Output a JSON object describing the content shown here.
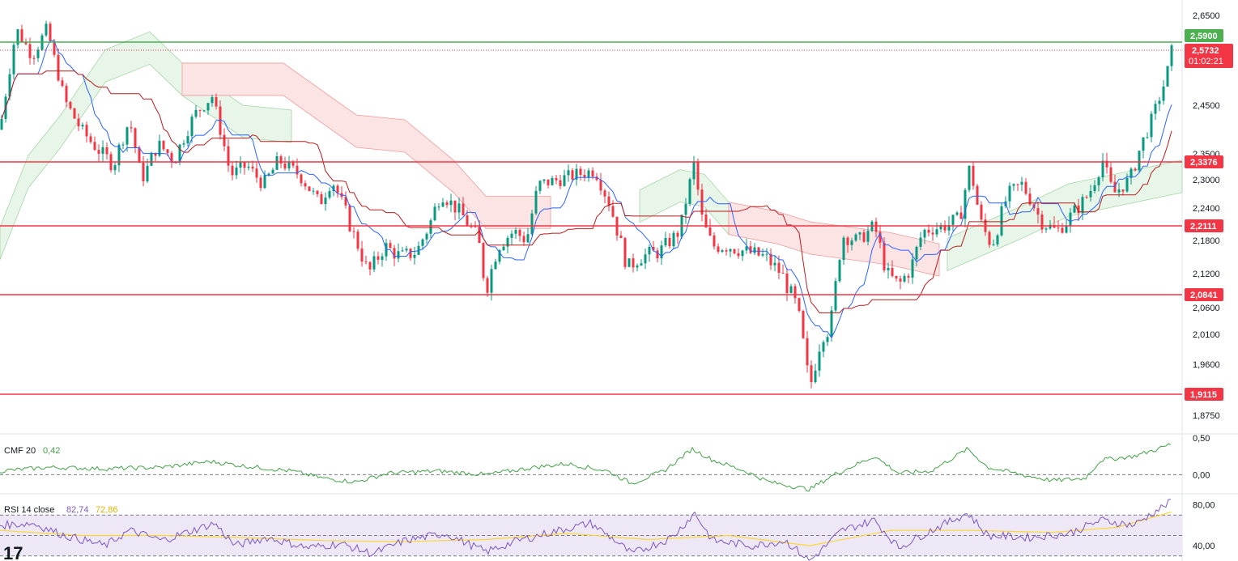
{
  "main_panel": {
    "y_ticks": [
      "2,6500",
      "2,4500",
      "2,3500",
      "2,3000",
      "2,2400",
      "2,1800",
      "2,1200",
      "2,0600",
      "2,0100",
      "1,9600",
      "1,8750"
    ],
    "price_badge": {
      "price": "2,5732",
      "countdown": "01:02:21"
    },
    "resistance_badge": "2,5900",
    "level_badges": [
      "2,3376",
      "2,2111",
      "2,0841",
      "1,9115"
    ]
  },
  "cmf_panel": {
    "name": "CMF 20",
    "value": "0,42",
    "y_ticks": [
      "0,50",
      "0,00"
    ]
  },
  "rsi_panel": {
    "name": "RSI 14 close",
    "value": "82,74",
    "ma_value": "72,86",
    "y_ticks": [
      "80,00",
      "40,00"
    ]
  },
  "watermark": "17",
  "colors": {
    "up": "#089981",
    "down": "#f23645",
    "level_line": "#f23645",
    "resistance_line": "#4caf50",
    "tenkan": "#2962ff",
    "kijun": "#b71c1c",
    "cloud_bull": "#e8f5e9",
    "cloud_bear": "#fde4e4",
    "cmf_line": "#43a047",
    "rsi_line": "#7e57c2",
    "rsi_ma": "#fdd835",
    "rsi_band": "#ede7f6"
  },
  "chart_data": [
    {
      "type": "candlestick",
      "price_scale": {
        "min": 1.86,
        "max": 2.66
      },
      "horizontal_levels": [
        {
          "value": 2.59,
          "role": "resistance",
          "color": "green"
        },
        {
          "value": 2.3376,
          "role": "level",
          "color": "red"
        },
        {
          "value": 2.2111,
          "role": "level",
          "color": "red"
        },
        {
          "value": 2.0841,
          "role": "level",
          "color": "red"
        },
        {
          "value": 1.9115,
          "role": "level",
          "color": "red"
        }
      ],
      "last_price": 2.5732,
      "close_path": [
        [
          0,
          2.4
        ],
        [
          20,
          2.62
        ],
        [
          40,
          2.56
        ],
        [
          58,
          2.62
        ],
        [
          80,
          2.46
        ],
        [
          100,
          2.4
        ],
        [
          120,
          2.36
        ],
        [
          140,
          2.33
        ],
        [
          160,
          2.42
        ],
        [
          175,
          2.3
        ],
        [
          195,
          2.37
        ],
        [
          215,
          2.34
        ],
        [
          240,
          2.43
        ],
        [
          262,
          2.47
        ],
        [
          285,
          2.31
        ],
        [
          305,
          2.33
        ],
        [
          325,
          2.29
        ],
        [
          345,
          2.34
        ],
        [
          370,
          2.31
        ],
        [
          395,
          2.25
        ],
        [
          410,
          2.3
        ],
        [
          435,
          2.2
        ],
        [
          455,
          2.12
        ],
        [
          475,
          2.17
        ],
        [
          495,
          2.15
        ],
        [
          515,
          2.16
        ],
        [
          530,
          2.21
        ],
        [
          545,
          2.27
        ],
        [
          570,
          2.23
        ],
        [
          590,
          2.19
        ],
        [
          600,
          2.09
        ],
        [
          615,
          2.17
        ],
        [
          635,
          2.2
        ],
        [
          650,
          2.18
        ],
        [
          665,
          2.29
        ],
        [
          690,
          2.3
        ],
        [
          710,
          2.31
        ],
        [
          735,
          2.32
        ],
        [
          755,
          2.24
        ],
        [
          775,
          2.13
        ],
        [
          790,
          2.15
        ],
        [
          815,
          2.16
        ],
        [
          840,
          2.2
        ],
        [
          858,
          2.34
        ],
        [
          865,
          2.23
        ],
        [
          880,
          2.17
        ],
        [
          900,
          2.17
        ],
        [
          920,
          2.16
        ],
        [
          945,
          2.15
        ],
        [
          965,
          2.12
        ],
        [
          985,
          2.06
        ],
        [
          1000,
          1.92
        ],
        [
          1015,
          2.01
        ],
        [
          1025,
          2.02
        ],
        [
          1040,
          2.19
        ],
        [
          1060,
          2.18
        ],
        [
          1080,
          2.21
        ],
        [
          1095,
          2.12
        ],
        [
          1110,
          2.1
        ],
        [
          1125,
          2.13
        ],
        [
          1140,
          2.2
        ],
        [
          1165,
          2.21
        ],
        [
          1185,
          2.22
        ],
        [
          1198,
          2.33
        ],
        [
          1210,
          2.22
        ],
        [
          1225,
          2.17
        ],
        [
          1245,
          2.27
        ],
        [
          1262,
          2.29
        ],
        [
          1285,
          2.22
        ],
        [
          1305,
          2.2
        ],
        [
          1325,
          2.23
        ],
        [
          1345,
          2.27
        ],
        [
          1362,
          2.34
        ],
        [
          1375,
          2.27
        ],
        [
          1395,
          2.3
        ],
        [
          1410,
          2.37
        ],
        [
          1425,
          2.43
        ],
        [
          1440,
          2.51
        ],
        [
          1447,
          2.57
        ]
      ],
      "cloud_bull_segments": [
        [
          [
            0,
            2.16
          ],
          [
            35,
            2.3
          ],
          [
            75,
            2.38
          ],
          [
            130,
            2.52
          ],
          [
            185,
            2.56
          ],
          [
            225,
            2.49
          ],
          [
            300,
            2.4
          ],
          [
            360,
            2.39
          ]
        ],
        [
          [
            790,
            2.23
          ],
          [
            840,
            2.27
          ],
          [
            870,
            2.26
          ],
          [
            900,
            2.21
          ]
        ],
        [
          [
            1170,
            2.14
          ],
          [
            1260,
            2.2
          ],
          [
            1320,
            2.24
          ],
          [
            1460,
            2.29
          ]
        ]
      ],
      "cloud_bear_segments": [
        [
          [
            225,
            2.49
          ],
          [
            350,
            2.49
          ],
          [
            440,
            2.38
          ],
          [
            500,
            2.37
          ],
          [
            560,
            2.29
          ],
          [
            600,
            2.22
          ],
          [
            680,
            2.22
          ]
        ],
        [
          [
            900,
            2.21
          ],
          [
            960,
            2.19
          ],
          [
            1000,
            2.17
          ],
          [
            1100,
            2.15
          ],
          [
            1160,
            2.13
          ]
        ]
      ]
    },
    {
      "type": "line",
      "indicator": "CMF 20",
      "last_value": 0.42,
      "y_range": [
        -0.25,
        0.5
      ],
      "zero_line": 0.0,
      "series_path": [
        [
          0,
          0.05
        ],
        [
          60,
          0.1
        ],
        [
          130,
          0.08
        ],
        [
          200,
          0.1
        ],
        [
          260,
          0.18
        ],
        [
          300,
          0.12
        ],
        [
          360,
          0.05
        ],
        [
          400,
          -0.05
        ],
        [
          440,
          -0.1
        ],
        [
          480,
          0.02
        ],
        [
          540,
          0.05
        ],
        [
          600,
          0.0
        ],
        [
          660,
          0.1
        ],
        [
          700,
          0.15
        ],
        [
          750,
          0.05
        ],
        [
          780,
          -0.12
        ],
        [
          820,
          0.05
        ],
        [
          855,
          0.35
        ],
        [
          880,
          0.2
        ],
        [
          920,
          0.05
        ],
        [
          950,
          -0.1
        ],
        [
          1000,
          -0.2
        ],
        [
          1030,
          0.0
        ],
        [
          1080,
          0.25
        ],
        [
          1110,
          0.02
        ],
        [
          1150,
          0.05
        ],
        [
          1195,
          0.35
        ],
        [
          1220,
          0.1
        ],
        [
          1270,
          -0.02
        ],
        [
          1300,
          -0.08
        ],
        [
          1340,
          -0.05
        ],
        [
          1360,
          0.2
        ],
        [
          1400,
          0.25
        ],
        [
          1430,
          0.35
        ],
        [
          1447,
          0.42
        ]
      ]
    },
    {
      "type": "line",
      "indicator": "RSI 14 close",
      "last_value": 82.74,
      "ma_last_value": 72.86,
      "y_range": [
        25,
        90
      ],
      "band": [
        30,
        70
      ],
      "series_path": [
        [
          0,
          60
        ],
        [
          40,
          62
        ],
        [
          80,
          50
        ],
        [
          130,
          40
        ],
        [
          160,
          55
        ],
        [
          200,
          45
        ],
        [
          265,
          62
        ],
        [
          290,
          40
        ],
        [
          330,
          48
        ],
        [
          380,
          38
        ],
        [
          420,
          42
        ],
        [
          460,
          32
        ],
        [
          500,
          45
        ],
        [
          550,
          52
        ],
        [
          600,
          34
        ],
        [
          640,
          45
        ],
        [
          690,
          55
        ],
        [
          730,
          62
        ],
        [
          760,
          45
        ],
        [
          780,
          32
        ],
        [
          830,
          48
        ],
        [
          858,
          72
        ],
        [
          880,
          45
        ],
        [
          930,
          40
        ],
        [
          970,
          45
        ],
        [
          1000,
          25
        ],
        [
          1040,
          55
        ],
        [
          1080,
          65
        ],
        [
          1110,
          38
        ],
        [
          1150,
          55
        ],
        [
          1195,
          72
        ],
        [
          1220,
          50
        ],
        [
          1270,
          48
        ],
        [
          1320,
          52
        ],
        [
          1360,
          65
        ],
        [
          1400,
          60
        ],
        [
          1440,
          80
        ],
        [
          1447,
          83
        ]
      ],
      "ma_path": [
        [
          0,
          55
        ],
        [
          100,
          50
        ],
        [
          200,
          50
        ],
        [
          300,
          48
        ],
        [
          400,
          45
        ],
        [
          500,
          44
        ],
        [
          600,
          46
        ],
        [
          700,
          52
        ],
        [
          800,
          46
        ],
        [
          900,
          50
        ],
        [
          1000,
          40
        ],
        [
          1100,
          55
        ],
        [
          1200,
          55
        ],
        [
          1300,
          53
        ],
        [
          1380,
          58
        ],
        [
          1447,
          73
        ]
      ]
    }
  ]
}
